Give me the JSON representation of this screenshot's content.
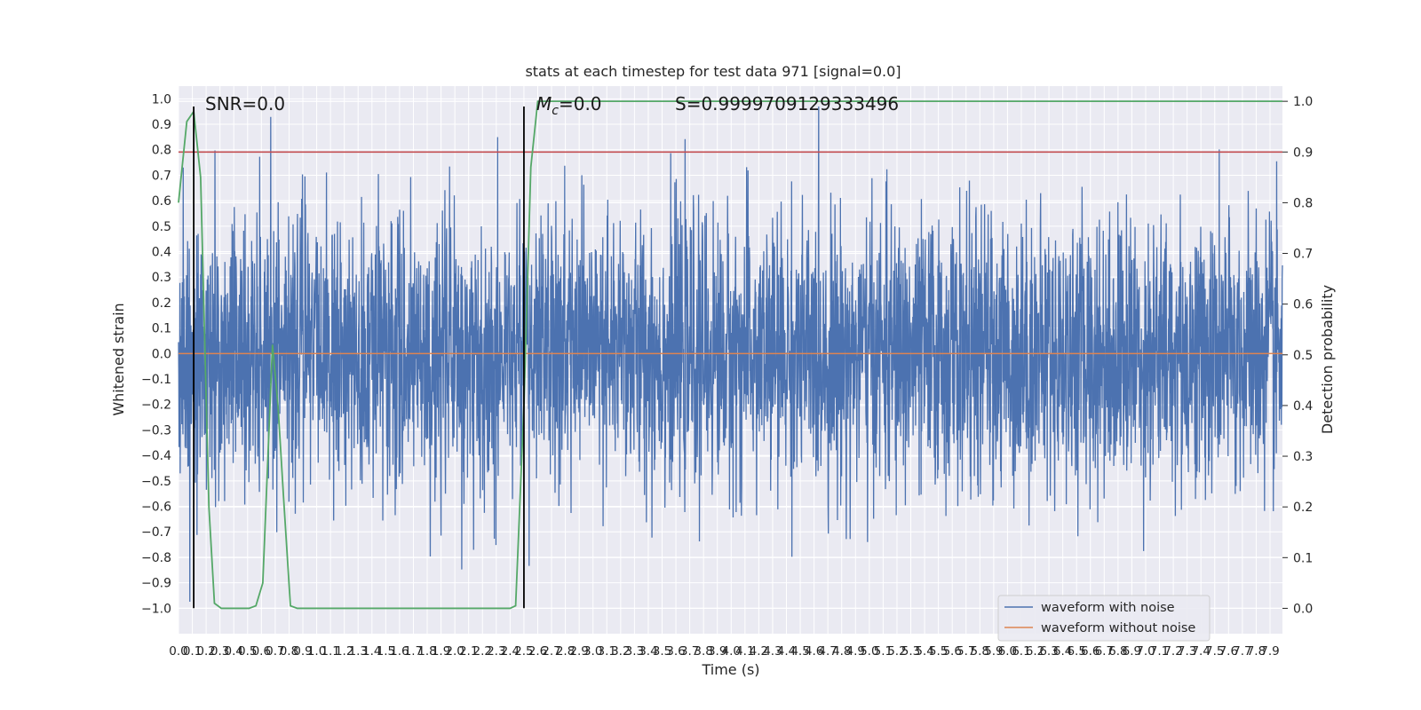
{
  "chart_data": {
    "type": "line",
    "title": "stats at each timestep for test data 971 [signal=0.0]",
    "xlabel": "Time (s)",
    "ylabel_left": "Whitened strain",
    "ylabel_right": "Detection probability",
    "xlim": [
      0.0,
      7.99
    ],
    "ylim_left": [
      -1.1,
      1.05
    ],
    "ylim_right": [
      -0.05,
      1.03
    ],
    "x_ticks": [
      "0.0",
      "0.1",
      "0.2",
      "0.3",
      "0.4",
      "0.5",
      "0.6",
      "0.7",
      "0.8",
      "0.9",
      "1.0",
      "1.1",
      "1.2",
      "1.3",
      "1.4",
      "1.5",
      "1.6",
      "1.7",
      "1.8",
      "1.9",
      "2.0",
      "2.1",
      "2.2",
      "2.3",
      "2.4",
      "2.5",
      "2.6",
      "2.7",
      "2.8",
      "2.9",
      "3.0",
      "3.1",
      "3.2",
      "3.3",
      "3.4",
      "3.5",
      "3.6",
      "3.7",
      "3.8",
      "3.9",
      "4.0",
      "4.1",
      "4.2",
      "4.3",
      "4.4",
      "4.5",
      "4.6",
      "4.7",
      "4.8",
      "4.9",
      "5.0",
      "5.1",
      "5.2",
      "5.3",
      "5.4",
      "5.5",
      "5.6",
      "5.7",
      "5.8",
      "5.9",
      "6.0",
      "6.1",
      "6.2",
      "6.3",
      "6.4",
      "6.5",
      "6.6",
      "6.7",
      "6.8",
      "6.9",
      "7.0",
      "7.1",
      "7.2",
      "7.3",
      "7.4",
      "7.5",
      "7.6",
      "7.7",
      "7.8",
      "7.9"
    ],
    "y_ticks_left": [
      "1.0",
      "0.9",
      "0.8",
      "0.7",
      "0.6",
      "0.5",
      "0.4",
      "0.3",
      "0.2",
      "0.1",
      "0.0",
      "−0.1",
      "−0.2",
      "−0.3",
      "−0.4",
      "−0.5",
      "−0.6",
      "−0.7",
      "−0.8",
      "−0.9",
      "−1.0"
    ],
    "y_ticks_right": [
      "1.0",
      "0.9",
      "0.8",
      "0.7",
      "0.6",
      "0.5",
      "0.4",
      "0.3",
      "0.2",
      "0.1",
      "0.0"
    ],
    "annotations": {
      "snr": "SNR=0.0",
      "mc_symbol": "M",
      "mc_sub": "c",
      "mc_value": "=0.0",
      "s": "S=0.9999709129333496"
    },
    "legend": {
      "placement": "lower-right",
      "entries": [
        {
          "label": "waveform with noise",
          "color": "#4c72b0"
        },
        {
          "label": "waveform without noise",
          "color": "#dd8452"
        }
      ]
    },
    "series": [
      {
        "name": "waveform with noise",
        "axis": "left",
        "color": "#4c72b0",
        "kind": "noise",
        "approx_amplitude": 0.55,
        "approx_extremes": [
          -0.99,
          0.97
        ]
      },
      {
        "name": "waveform without noise",
        "axis": "left",
        "color": "#dd8452",
        "constant_value": 0.0
      },
      {
        "axis": "right",
        "color": "#55a868",
        "x": [
          0.0,
          0.06,
          0.11,
          0.16,
          0.22,
          0.26,
          0.31,
          0.36,
          0.41,
          0.46,
          0.51,
          0.56,
          0.61,
          0.68,
          0.72,
          0.76,
          0.81,
          0.86,
          0.91,
          1.0,
          1.5,
          2.0,
          2.3,
          2.4,
          2.44,
          2.5,
          2.55,
          2.6,
          3.0,
          4.0,
          5.0,
          6.0,
          7.0,
          7.99
        ],
        "values": [
          0.8,
          0.96,
          0.98,
          0.85,
          0.2,
          0.01,
          0.0,
          0.0,
          0.0,
          0.0,
          0.0,
          0.005,
          0.05,
          0.52,
          0.4,
          0.22,
          0.005,
          0.0,
          0.0,
          0.0,
          0.0,
          0.0,
          0.0,
          0.0,
          0.005,
          0.4,
          0.87,
          1.0,
          1.0,
          1.0,
          1.0,
          1.0,
          1.0,
          1.0
        ]
      }
    ],
    "hlines": [
      {
        "axis": "right",
        "value": 0.9,
        "color": "#c44e52"
      }
    ],
    "vlines": [
      {
        "x": 0.11,
        "ymin": -1.0,
        "ymax": 0.97,
        "color": "#000000"
      },
      {
        "x": 2.5,
        "ymin": -1.0,
        "ymax": 0.97,
        "color": "#000000"
      }
    ],
    "grid": true
  }
}
